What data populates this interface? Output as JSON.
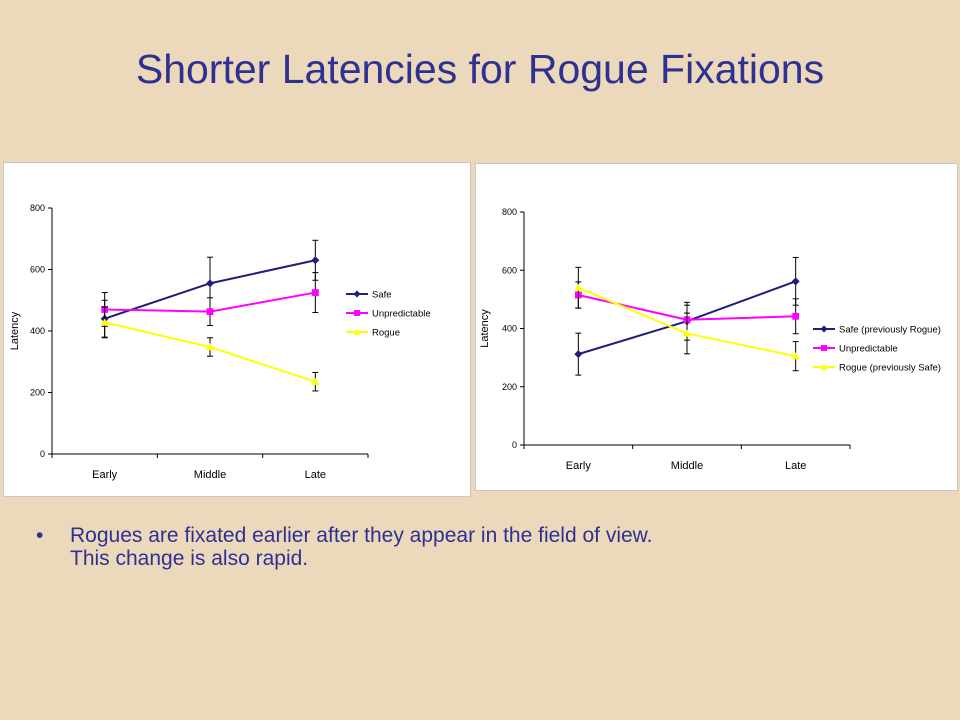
{
  "slide": {
    "title": "Shorter Latencies for Rogue Fixations",
    "bullets": [
      {
        "mark": "•",
        "lines": [
          "Rogues are fixated earlier after they appear in the field of view.",
          "This change is also rapid."
        ]
      }
    ]
  },
  "chart_data": [
    {
      "type": "line",
      "title": "",
      "xlabel": "",
      "ylabel": "Latency",
      "categories": [
        "Early",
        "Middle",
        "Late"
      ],
      "ylim": [
        0,
        800
      ],
      "yticks": [
        0,
        200,
        400,
        600,
        800
      ],
      "grid": false,
      "legend": "right",
      "series": [
        {
          "name": "Safe",
          "color": "#1f1f7a",
          "marker": "diamond",
          "values": [
            440,
            555,
            630
          ],
          "err": [
            60,
            85,
            65
          ]
        },
        {
          "name": "Unpredictable",
          "color": "#ff00ff",
          "marker": "square",
          "values": [
            470,
            463,
            525
          ],
          "err": [
            55,
            45,
            65
          ]
        },
        {
          "name": "Rogue",
          "color": "#ffff00",
          "marker": "triangle",
          "values": [
            428,
            348,
            235
          ],
          "err": [
            50,
            30,
            30
          ]
        }
      ]
    },
    {
      "type": "line",
      "title": "",
      "xlabel": "",
      "ylabel": "Latency",
      "categories": [
        "Early",
        "Middle",
        "Late"
      ],
      "ylim": [
        0,
        800
      ],
      "yticks": [
        0,
        200,
        400,
        600,
        800
      ],
      "grid": false,
      "legend": "right",
      "series": [
        {
          "name": "Safe (previously Rogue)",
          "color": "#1f1f7a",
          "marker": "diamond",
          "values": [
            312,
            425,
            562
          ],
          "err": [
            72,
            65,
            82
          ]
        },
        {
          "name": "Unpredictable",
          "color": "#ff00ff",
          "marker": "square",
          "values": [
            515,
            430,
            442
          ],
          "err": [
            45,
            50,
            60
          ]
        },
        {
          "name": "Rogue (previously Safe)",
          "color": "#ffff00",
          "marker": "triangle",
          "values": [
            540,
            383,
            305
          ],
          "err": [
            70,
            70,
            50
          ]
        }
      ]
    }
  ]
}
